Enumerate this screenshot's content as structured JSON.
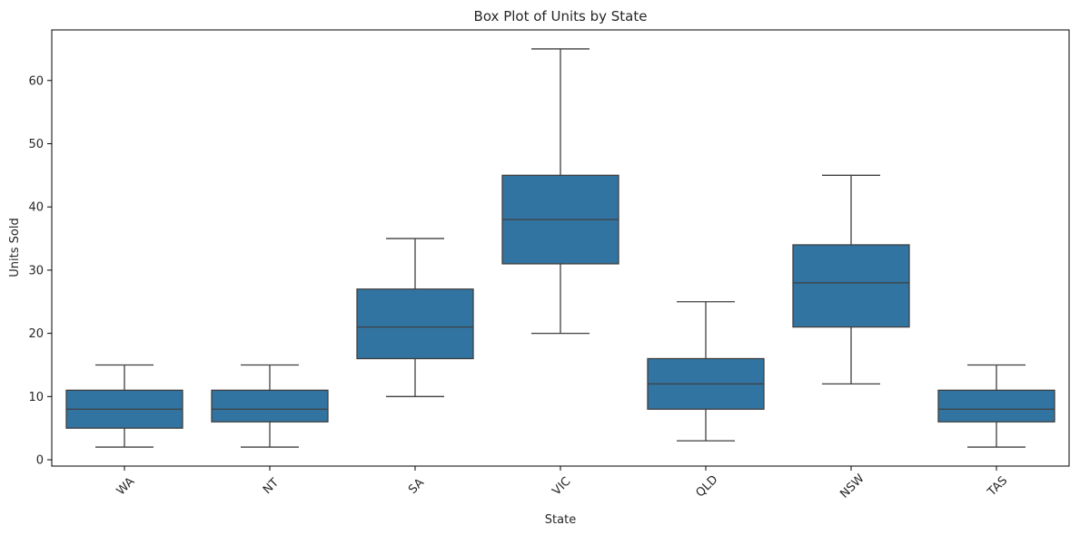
{
  "chart_data": {
    "type": "box",
    "title": "Box Plot of Units by State",
    "xlabel": "State",
    "ylabel": "Units Sold",
    "ylim": [
      -1,
      68
    ],
    "yticks": [
      0,
      10,
      20,
      30,
      40,
      50,
      60
    ],
    "grid": false,
    "legend": "none",
    "box_color": "#3274a1",
    "line_color": "#3f3f3f",
    "categories": [
      "WA",
      "NT",
      "SA",
      "VIC",
      "QLD",
      "NSW",
      "TAS"
    ],
    "boxes": [
      {
        "category": "WA",
        "min": 2,
        "q1": 5,
        "median": 8,
        "q3": 11,
        "max": 15
      },
      {
        "category": "NT",
        "min": 2,
        "q1": 6,
        "median": 8,
        "q3": 11,
        "max": 15
      },
      {
        "category": "SA",
        "min": 10,
        "q1": 16,
        "median": 21,
        "q3": 27,
        "max": 35
      },
      {
        "category": "VIC",
        "min": 20,
        "q1": 31,
        "median": 38,
        "q3": 45,
        "max": 65
      },
      {
        "category": "QLD",
        "min": 3,
        "q1": 8,
        "median": 12,
        "q3": 16,
        "max": 25
      },
      {
        "category": "NSW",
        "min": 12,
        "q1": 21,
        "median": 28,
        "q3": 34,
        "max": 45
      },
      {
        "category": "TAS",
        "min": 2,
        "q1": 6,
        "median": 8,
        "q3": 11,
        "max": 15
      }
    ]
  }
}
